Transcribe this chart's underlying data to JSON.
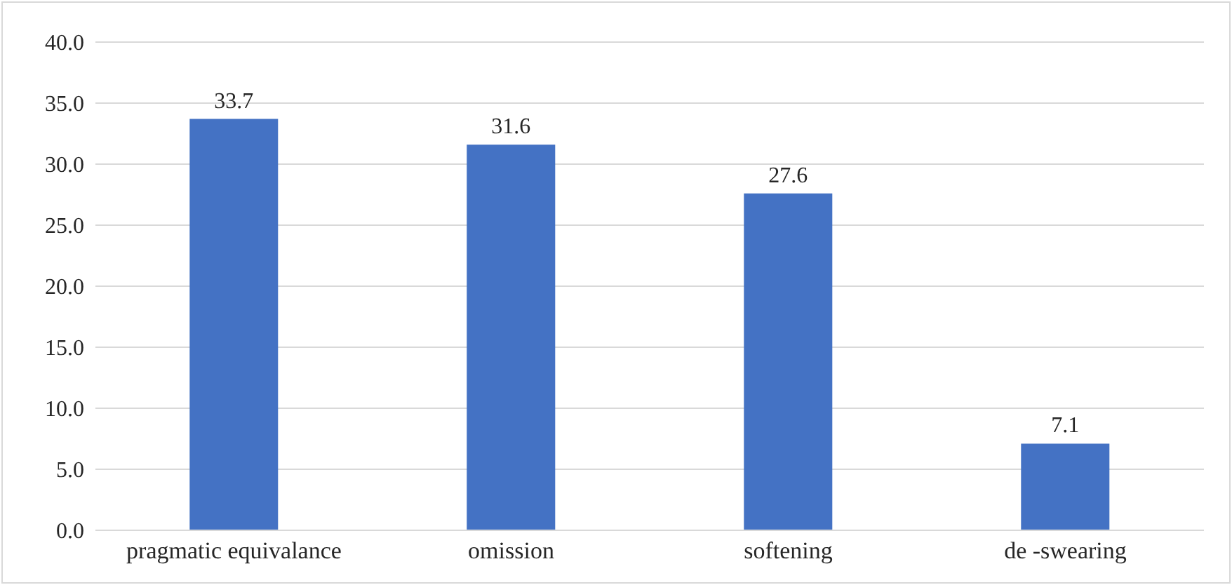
{
  "chart_data": {
    "type": "bar",
    "categories": [
      "pragmatic equivalance",
      "omission",
      "softening",
      "de -swearing"
    ],
    "values": [
      33.7,
      31.6,
      27.6,
      7.1
    ],
    "color": "#4472c4",
    "ylim": [
      0,
      40
    ],
    "yticks": [
      {
        "value": 0,
        "label": "0.0"
      },
      {
        "value": 5,
        "label": "5.0"
      },
      {
        "value": 10,
        "label": "10.0"
      },
      {
        "value": 15,
        "label": "15.0"
      },
      {
        "value": 20,
        "label": "20.0"
      },
      {
        "value": 25,
        "label": "25.0"
      },
      {
        "value": 30,
        "label": "30.0"
      },
      {
        "value": 35,
        "label": "35.0"
      },
      {
        "value": 40,
        "label": "40.0"
      }
    ],
    "grid": "y",
    "data_labels": true,
    "legend": false
  }
}
